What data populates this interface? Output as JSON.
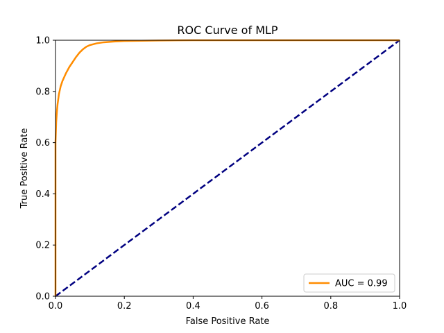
{
  "chart_data": {
    "type": "line",
    "title": "ROC Curve of MLP",
    "xlabel": "False Positive Rate",
    "ylabel": "True Positive Rate",
    "xlim": [
      0.0,
      1.0
    ],
    "ylim": [
      0.0,
      1.0
    ],
    "xticks": [
      "0.0",
      "0.2",
      "0.4",
      "0.6",
      "0.8",
      "1.0"
    ],
    "yticks": [
      "0.0",
      "0.2",
      "0.4",
      "0.6",
      "0.8",
      "1.0"
    ],
    "grid": false,
    "legend_position": "lower-right",
    "series": [
      {
        "name": "AUC = 0.99",
        "color": "#ff8c00",
        "style": "solid",
        "x": [
          0.0,
          0.0,
          0.002,
          0.004,
          0.006,
          0.01,
          0.015,
          0.02,
          0.03,
          0.04,
          0.05,
          0.06,
          0.07,
          0.08,
          0.09,
          0.1,
          0.12,
          0.14,
          0.17,
          0.2,
          0.25,
          0.3,
          0.4,
          0.6,
          0.8,
          1.0
        ],
        "y": [
          0.0,
          0.6,
          0.68,
          0.72,
          0.75,
          0.79,
          0.82,
          0.84,
          0.87,
          0.895,
          0.915,
          0.935,
          0.952,
          0.965,
          0.975,
          0.981,
          0.988,
          0.992,
          0.995,
          0.997,
          0.998,
          0.999,
          1.0,
          1.0,
          1.0,
          1.0
        ]
      },
      {
        "color": "#000080",
        "style": "dashed",
        "x": [
          0.0,
          1.0
        ],
        "y": [
          0.0,
          1.0
        ]
      }
    ]
  }
}
